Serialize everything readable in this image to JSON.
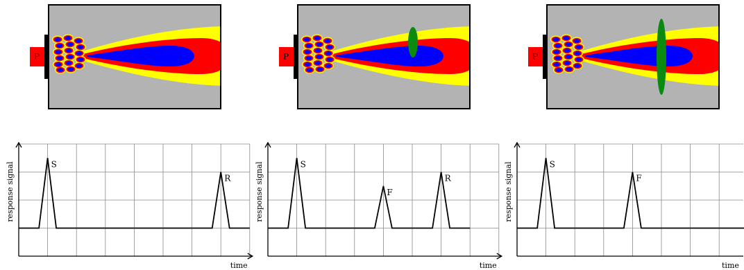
{
  "panels": [
    {
      "probe_label": "P",
      "defect": "none",
      "chart_data": {
        "type": "line",
        "xlabel": "time",
        "ylabel": "response signal",
        "x": [
          0,
          0.7,
          1,
          1.3,
          6.7,
          7,
          7.3,
          8
        ],
        "y": [
          0,
          0,
          2.5,
          0,
          0,
          2,
          0,
          0
        ],
        "peaks": [
          {
            "label": "S",
            "x": 1,
            "y": 2.5
          },
          {
            "label": "R",
            "x": 7,
            "y": 2
          }
        ]
      }
    },
    {
      "probe_label": "P",
      "defect": "small",
      "chart_data": {
        "type": "line",
        "xlabel": "time",
        "ylabel": "response signal",
        "x": [
          0,
          0.7,
          1,
          1.3,
          3.7,
          4,
          4.3,
          5.7,
          6,
          6.3,
          7
        ],
        "y": [
          0,
          0,
          2.5,
          0,
          0,
          1.5,
          0,
          0,
          2,
          0,
          0
        ],
        "peaks": [
          {
            "label": "S",
            "x": 1,
            "y": 2.5
          },
          {
            "label": "F",
            "x": 4,
            "y": 1.5
          },
          {
            "label": "R",
            "x": 6,
            "y": 2
          }
        ]
      }
    },
    {
      "probe_label": "P",
      "defect": "large",
      "chart_data": {
        "type": "line",
        "xlabel": "time",
        "ylabel": "response signal",
        "x": [
          0,
          0.7,
          1,
          1.3,
          3.7,
          4,
          4.3,
          8
        ],
        "y": [
          0,
          0,
          2.5,
          0,
          0,
          2,
          0,
          0
        ],
        "peaks": [
          {
            "label": "S",
            "x": 1,
            "y": 2.5
          },
          {
            "label": "F",
            "x": 4,
            "y": 2
          }
        ]
      }
    }
  ]
}
